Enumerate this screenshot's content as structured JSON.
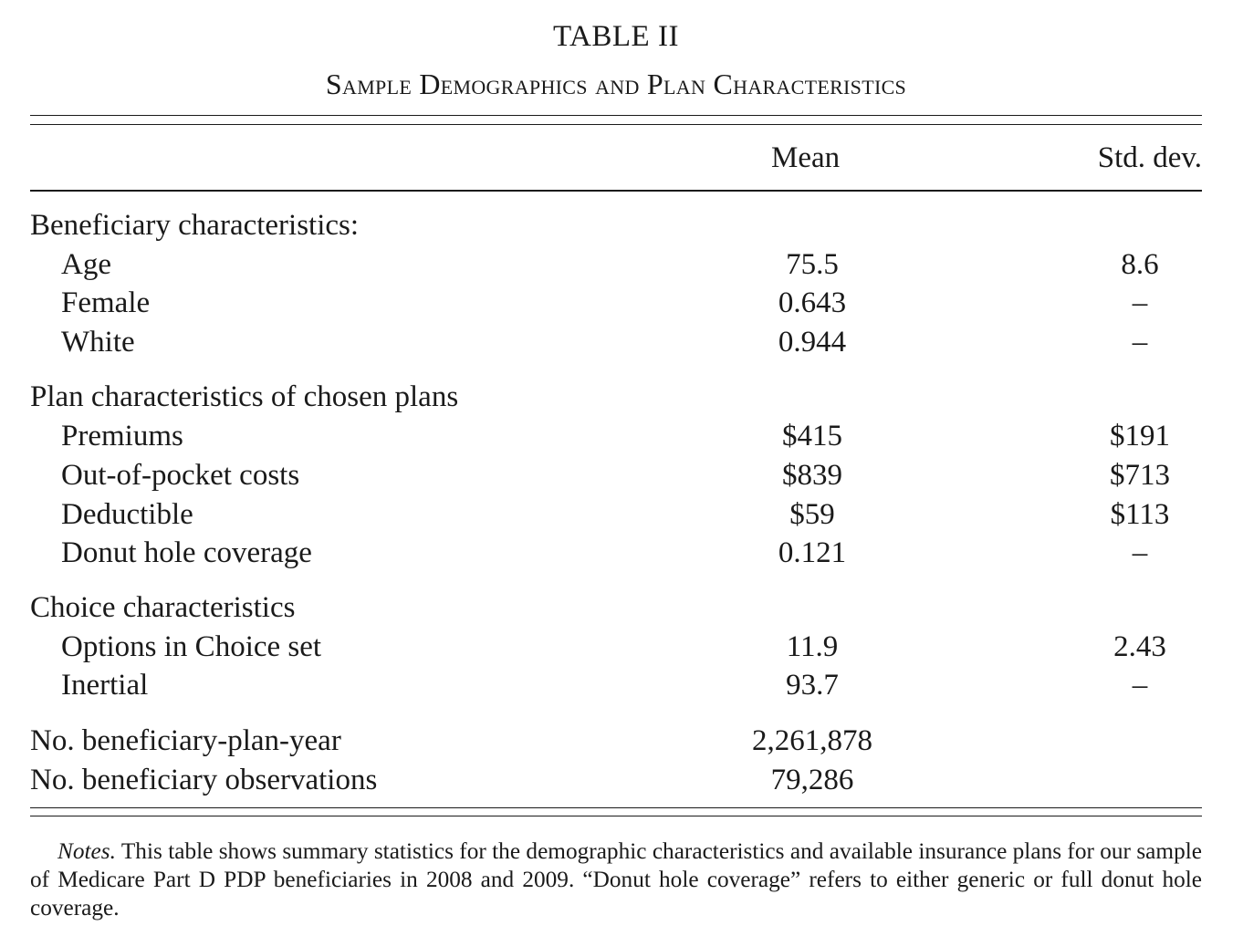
{
  "table": {
    "title": "TABLE II",
    "subtitle": "Sample Demographics and Plan Characteristics",
    "columns": {
      "mean": "Mean",
      "sd": "Std. dev."
    },
    "sections": [
      {
        "heading": "Beneficiary characteristics:",
        "rows": [
          {
            "label": "Age",
            "mean": "75.5",
            "sd": "8.6"
          },
          {
            "label": "Female",
            "mean": "0.643",
            "sd": "–"
          },
          {
            "label": "White",
            "mean": "0.944",
            "sd": "–"
          }
        ]
      },
      {
        "heading": "Plan characteristics of chosen plans",
        "rows": [
          {
            "label": "Premiums",
            "mean": "$415",
            "sd": "$191"
          },
          {
            "label": "Out-of-pocket costs",
            "mean": "$839",
            "sd": "$713"
          },
          {
            "label": "Deductible",
            "mean": "$59",
            "sd": "$113"
          },
          {
            "label": "Donut hole coverage",
            "mean": "0.121",
            "sd": "–"
          }
        ]
      },
      {
        "heading": "Choice characteristics",
        "rows": [
          {
            "label": "Options in Choice set",
            "mean": "11.9",
            "sd": "2.43"
          },
          {
            "label": "Inertial",
            "mean": "93.7",
            "sd": "–"
          }
        ]
      }
    ],
    "counts": [
      {
        "label": "No. beneficiary-plan-year",
        "mean": "2,261,878"
      },
      {
        "label": "No. beneficiary observations",
        "mean": "79,286"
      }
    ],
    "notes": {
      "label": "Notes.",
      "text": "This table shows summary statistics for the demographic characteristics and available insurance plans for our sample of Medicare Part D PDP beneficiaries in 2008 and 2009. “Donut hole coverage” refers to either generic or full donut hole coverage."
    }
  }
}
